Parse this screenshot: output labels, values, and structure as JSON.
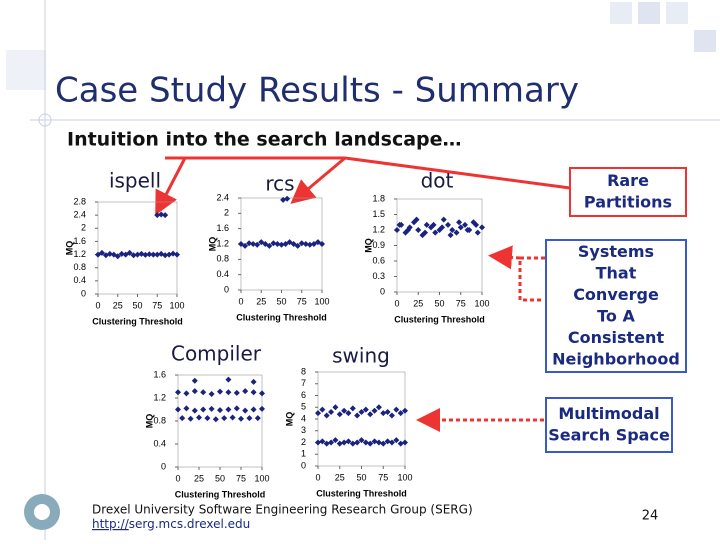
{
  "slide": {
    "title": "Case Study Results - Summary",
    "subtitle": "Intuition into the search landscape…",
    "callouts": [
      {
        "lines": [
          "Rare",
          "Partitions"
        ]
      },
      {
        "lines": [
          "Systems",
          "That",
          "Converge",
          "To A",
          "Consistent",
          "Neighborhood"
        ]
      },
      {
        "lines": [
          "Multimodal",
          "Search Space"
        ]
      }
    ],
    "footer": "Drexel University Software Engineering Research Group (SERG)",
    "link_prefix": "http://",
    "link_rest": "serg.mcs.drexel.edu",
    "page_number": "24"
  },
  "chart_data": [
    {
      "type": "scatter",
      "title": "ispell",
      "xlabel": "Clustering Threshold",
      "ylabel": "MQ",
      "color": "#1a237e",
      "xlim": [
        0,
        100
      ],
      "ylim": [
        0,
        2.8
      ],
      "xticks": [
        0,
        25,
        50,
        75,
        100
      ],
      "yticks": [
        0,
        0.4,
        0.8,
        1.2,
        1.6,
        2,
        2.4,
        2.8
      ],
      "x": [
        0,
        5,
        10,
        15,
        20,
        25,
        30,
        35,
        40,
        45,
        50,
        55,
        60,
        65,
        70,
        75,
        80,
        85,
        90,
        95,
        100,
        75,
        80,
        85
      ],
      "y": [
        1.2,
        1.25,
        1.18,
        1.22,
        1.2,
        1.15,
        1.22,
        1.2,
        1.25,
        1.18,
        1.2,
        1.22,
        1.19,
        1.21,
        1.2,
        1.2,
        1.22,
        1.18,
        1.2,
        1.23,
        1.2,
        2.4,
        2.42,
        2.4
      ]
    },
    {
      "type": "scatter",
      "title": "rcs",
      "xlabel": "Clustering Threshold",
      "ylabel": "MQ",
      "color": "#1a237e",
      "xlim": [
        0,
        100
      ],
      "ylim": [
        0,
        2.4
      ],
      "xticks": [
        0,
        25,
        50,
        75,
        100
      ],
      "yticks": [
        0,
        0.4,
        0.8,
        1.2,
        1.6,
        2,
        2.4
      ],
      "x": [
        0,
        5,
        10,
        15,
        20,
        25,
        30,
        35,
        40,
        45,
        50,
        55,
        60,
        65,
        70,
        75,
        80,
        85,
        90,
        95,
        100,
        52,
        57
      ],
      "y": [
        1.2,
        1.15,
        1.22,
        1.2,
        1.18,
        1.25,
        1.2,
        1.15,
        1.22,
        1.2,
        1.18,
        1.2,
        1.25,
        1.2,
        1.15,
        1.22,
        1.2,
        1.18,
        1.2,
        1.25,
        1.2,
        2.35,
        2.38
      ]
    },
    {
      "type": "scatter",
      "title": "dot",
      "xlabel": "Clustering Threshold",
      "ylabel": "MQ",
      "color": "#1a237e",
      "xlim": [
        0,
        100
      ],
      "ylim": [
        0,
        1.8
      ],
      "xticks": [
        0,
        25,
        50,
        75,
        100
      ],
      "yticks": [
        0,
        0.3,
        0.6,
        0.9,
        1.2,
        1.5,
        1.8
      ],
      "x": [
        0,
        5,
        10,
        15,
        20,
        25,
        30,
        35,
        40,
        45,
        50,
        55,
        60,
        65,
        70,
        75,
        80,
        85,
        90,
        95,
        100,
        3,
        13,
        23,
        33,
        43,
        53,
        63,
        73,
        83,
        93
      ],
      "y": [
        1.2,
        1.3,
        1.15,
        1.25,
        1.35,
        1.2,
        1.1,
        1.3,
        1.25,
        1.15,
        1.2,
        1.4,
        1.3,
        1.2,
        1.15,
        1.25,
        1.3,
        1.2,
        1.35,
        1.15,
        1.25,
        1.3,
        1.2,
        1.4,
        1.15,
        1.3,
        1.25,
        1.1,
        1.35,
        1.2,
        1.3
      ]
    },
    {
      "type": "scatter",
      "title": "Compiler",
      "xlabel": "Clustering Threshold",
      "ylabel": "MQ",
      "color": "#1a237e",
      "xlim": [
        0,
        100
      ],
      "ylim": [
        0,
        1.6
      ],
      "xticks": [
        0,
        25,
        50,
        75,
        100
      ],
      "yticks": [
        0,
        0.4,
        0.8,
        1.2,
        1.6
      ],
      "x": [
        0,
        10,
        20,
        30,
        40,
        50,
        60,
        70,
        80,
        90,
        100,
        0,
        10,
        20,
        30,
        40,
        50,
        60,
        70,
        80,
        90,
        100,
        5,
        15,
        25,
        35,
        45,
        55,
        65,
        75,
        85,
        95,
        20,
        60,
        90
      ],
      "y": [
        1.3,
        1.28,
        1.32,
        1.3,
        1.27,
        1.31,
        1.3,
        1.29,
        1.32,
        1.3,
        1.28,
        1.0,
        1.02,
        0.98,
        1.0,
        1.01,
        0.99,
        1.0,
        1.02,
        0.98,
        1.0,
        1.01,
        0.85,
        0.84,
        0.86,
        0.85,
        0.83,
        0.85,
        0.86,
        0.84,
        0.85,
        0.85,
        1.5,
        1.52,
        1.48
      ]
    },
    {
      "type": "scatter",
      "title": "swing",
      "xlabel": "Clustering Threshold",
      "ylabel": "MQ",
      "color": "#1a237e",
      "xlim": [
        0,
        100
      ],
      "ylim": [
        0,
        8
      ],
      "xticks": [
        0,
        25,
        50,
        75,
        100
      ],
      "yticks": [
        0,
        1,
        2,
        3,
        4,
        5,
        6,
        7,
        8
      ],
      "x": [
        0,
        5,
        10,
        15,
        20,
        25,
        30,
        35,
        40,
        45,
        50,
        55,
        60,
        65,
        70,
        75,
        80,
        85,
        90,
        95,
        100,
        0,
        5,
        10,
        15,
        20,
        25,
        30,
        35,
        40,
        45,
        50,
        55,
        60,
        65,
        70,
        75,
        80,
        85,
        90,
        95,
        100
      ],
      "y": [
        4.5,
        4.8,
        4.3,
        4.6,
        5.0,
        4.4,
        4.7,
        4.5,
        4.9,
        4.3,
        4.6,
        4.8,
        4.4,
        4.7,
        5.0,
        4.5,
        4.6,
        4.3,
        4.8,
        4.5,
        4.7,
        2.0,
        2.1,
        1.9,
        2.0,
        2.2,
        1.9,
        2.0,
        2.1,
        1.9,
        2.0,
        2.2,
        2.0,
        1.9,
        2.1,
        2.0,
        1.9,
        2.1,
        2.0,
        2.2,
        1.9,
        2.0
      ]
    }
  ]
}
